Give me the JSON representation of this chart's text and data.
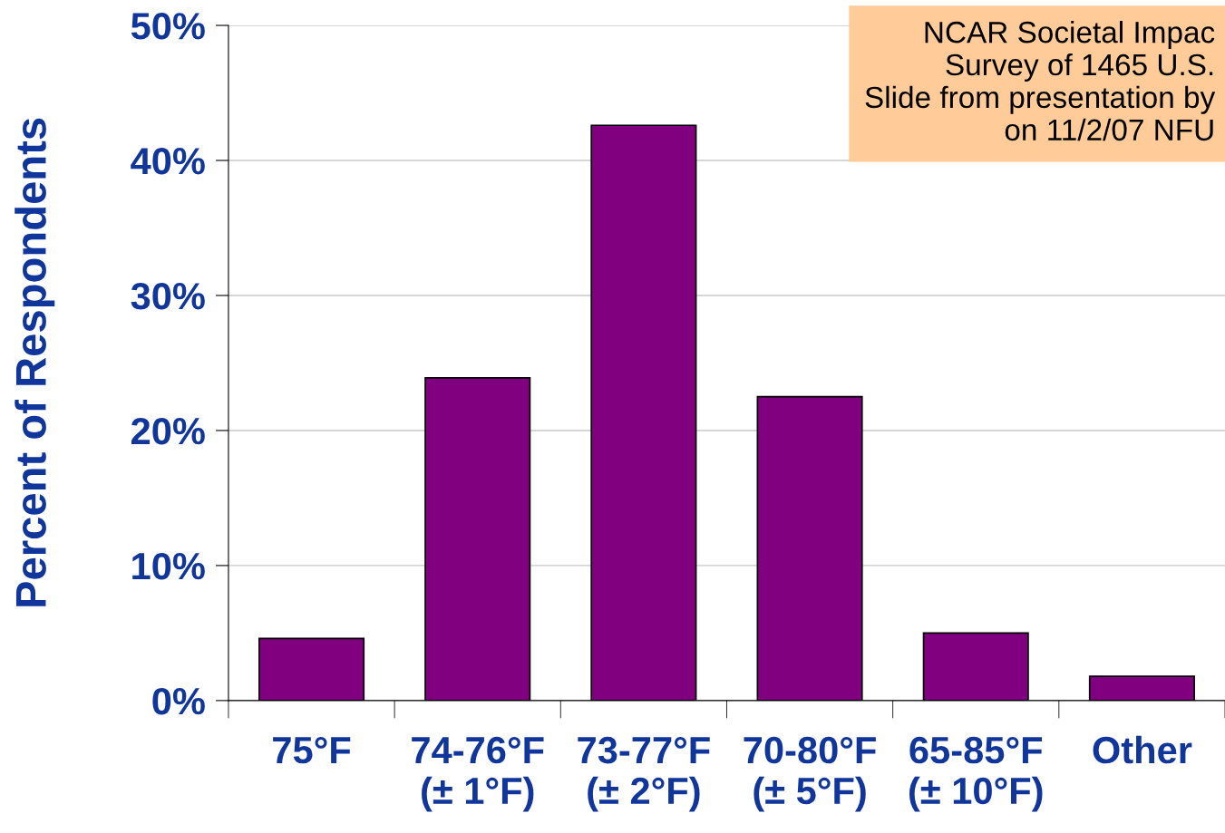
{
  "chart_data": {
    "type": "bar",
    "ylabel": "Percent of Respondents",
    "categories": [
      "75°F",
      "74-76°F\n(± 1°F)",
      "73-77°F\n(± 2°F)",
      "70-80°F\n(± 5°F)",
      "65-85°F\n(± 10°F)",
      "Other"
    ],
    "values": [
      4.6,
      23.9,
      42.6,
      22.5,
      5.0,
      1.8
    ],
    "color": "#800080",
    "ylim": [
      0,
      50
    ],
    "yticks": [
      {
        "value": 0,
        "label": "0%"
      },
      {
        "value": 10,
        "label": "10%"
      },
      {
        "value": 20,
        "label": "20%"
      },
      {
        "value": 30,
        "label": "30%"
      },
      {
        "value": 40,
        "label": "40%"
      },
      {
        "value": 50,
        "label": "50%"
      }
    ],
    "grid": "y",
    "annotations": [
      "NCAR Societal Impac\nSurvey of 1465 U.S.\nSlide from presentation by\non 11/2/07 NFU"
    ]
  }
}
